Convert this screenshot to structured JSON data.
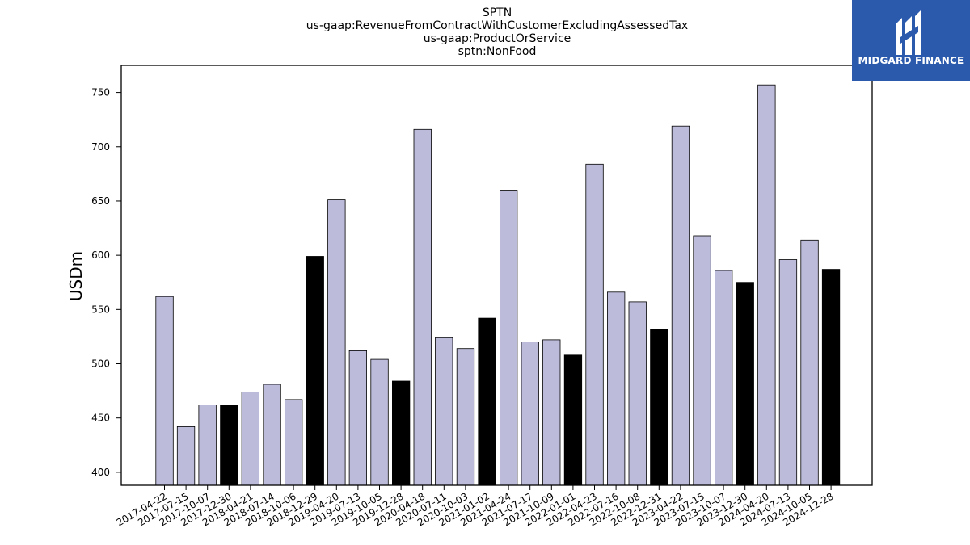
{
  "chart_data": {
    "type": "bar",
    "title_lines": [
      "SPTN",
      "us-gaap:RevenueFromContractWithCustomerExcludingAssessedTax",
      "us-gaap:ProductOrService",
      "sptn:NonFood"
    ],
    "ylabel": "USDm",
    "xlabel": "",
    "ylim": [
      388,
      775
    ],
    "yticks": [
      400,
      450,
      500,
      550,
      600,
      650,
      700,
      750
    ],
    "grid": false,
    "categories": [
      "2017-04-22",
      "2017-07-15",
      "2017-10-07",
      "2017-12-30",
      "2018-04-21",
      "2018-07-14",
      "2018-10-06",
      "2018-12-29",
      "2019-04-20",
      "2019-07-13",
      "2019-10-05",
      "2019-12-28",
      "2020-04-18",
      "2020-07-11",
      "2020-10-03",
      "2021-01-02",
      "2021-04-24",
      "2021-07-17",
      "2021-10-09",
      "2022-01-01",
      "2022-04-23",
      "2022-07-16",
      "2022-10-08",
      "2022-12-31",
      "2023-04-22",
      "2023-07-15",
      "2023-10-07",
      "2023-12-30",
      "2024-04-20",
      "2024-07-13",
      "2024-10-05",
      "2024-12-28"
    ],
    "values": [
      562,
      442,
      462,
      462,
      474,
      481,
      467,
      599,
      651,
      512,
      504,
      484,
      716,
      524,
      514,
      542,
      660,
      520,
      522,
      508,
      684,
      566,
      557,
      532,
      719,
      618,
      586,
      575,
      757,
      596,
      614,
      587
    ],
    "values_note_order": "",
    "bar_colors": [
      "#bcbbd9",
      "#bcbbd9",
      "#bcbbd9",
      "#000000",
      "#bcbbd9",
      "#bcbbd9",
      "#bcbbd9",
      "#000000",
      "#bcbbd9",
      "#bcbbd9",
      "#bcbbd9",
      "#000000",
      "#bcbbd9",
      "#bcbbd9",
      "#bcbbd9",
      "#000000",
      "#bcbbd9",
      "#bcbbd9",
      "#bcbbd9",
      "#000000",
      "#bcbbd9",
      "#bcbbd9",
      "#bcbbd9",
      "#000000",
      "#bcbbd9",
      "#bcbbd9",
      "#bcbbd9",
      "#000000",
      "#bcbbd9",
      "#bcbbd9",
      "#bcbbd9",
      "#000000"
    ]
  },
  "logo": {
    "text": "MIDGARD FINANCE",
    "background": "#2b5aad",
    "icon": "midgard-logo-icon"
  }
}
